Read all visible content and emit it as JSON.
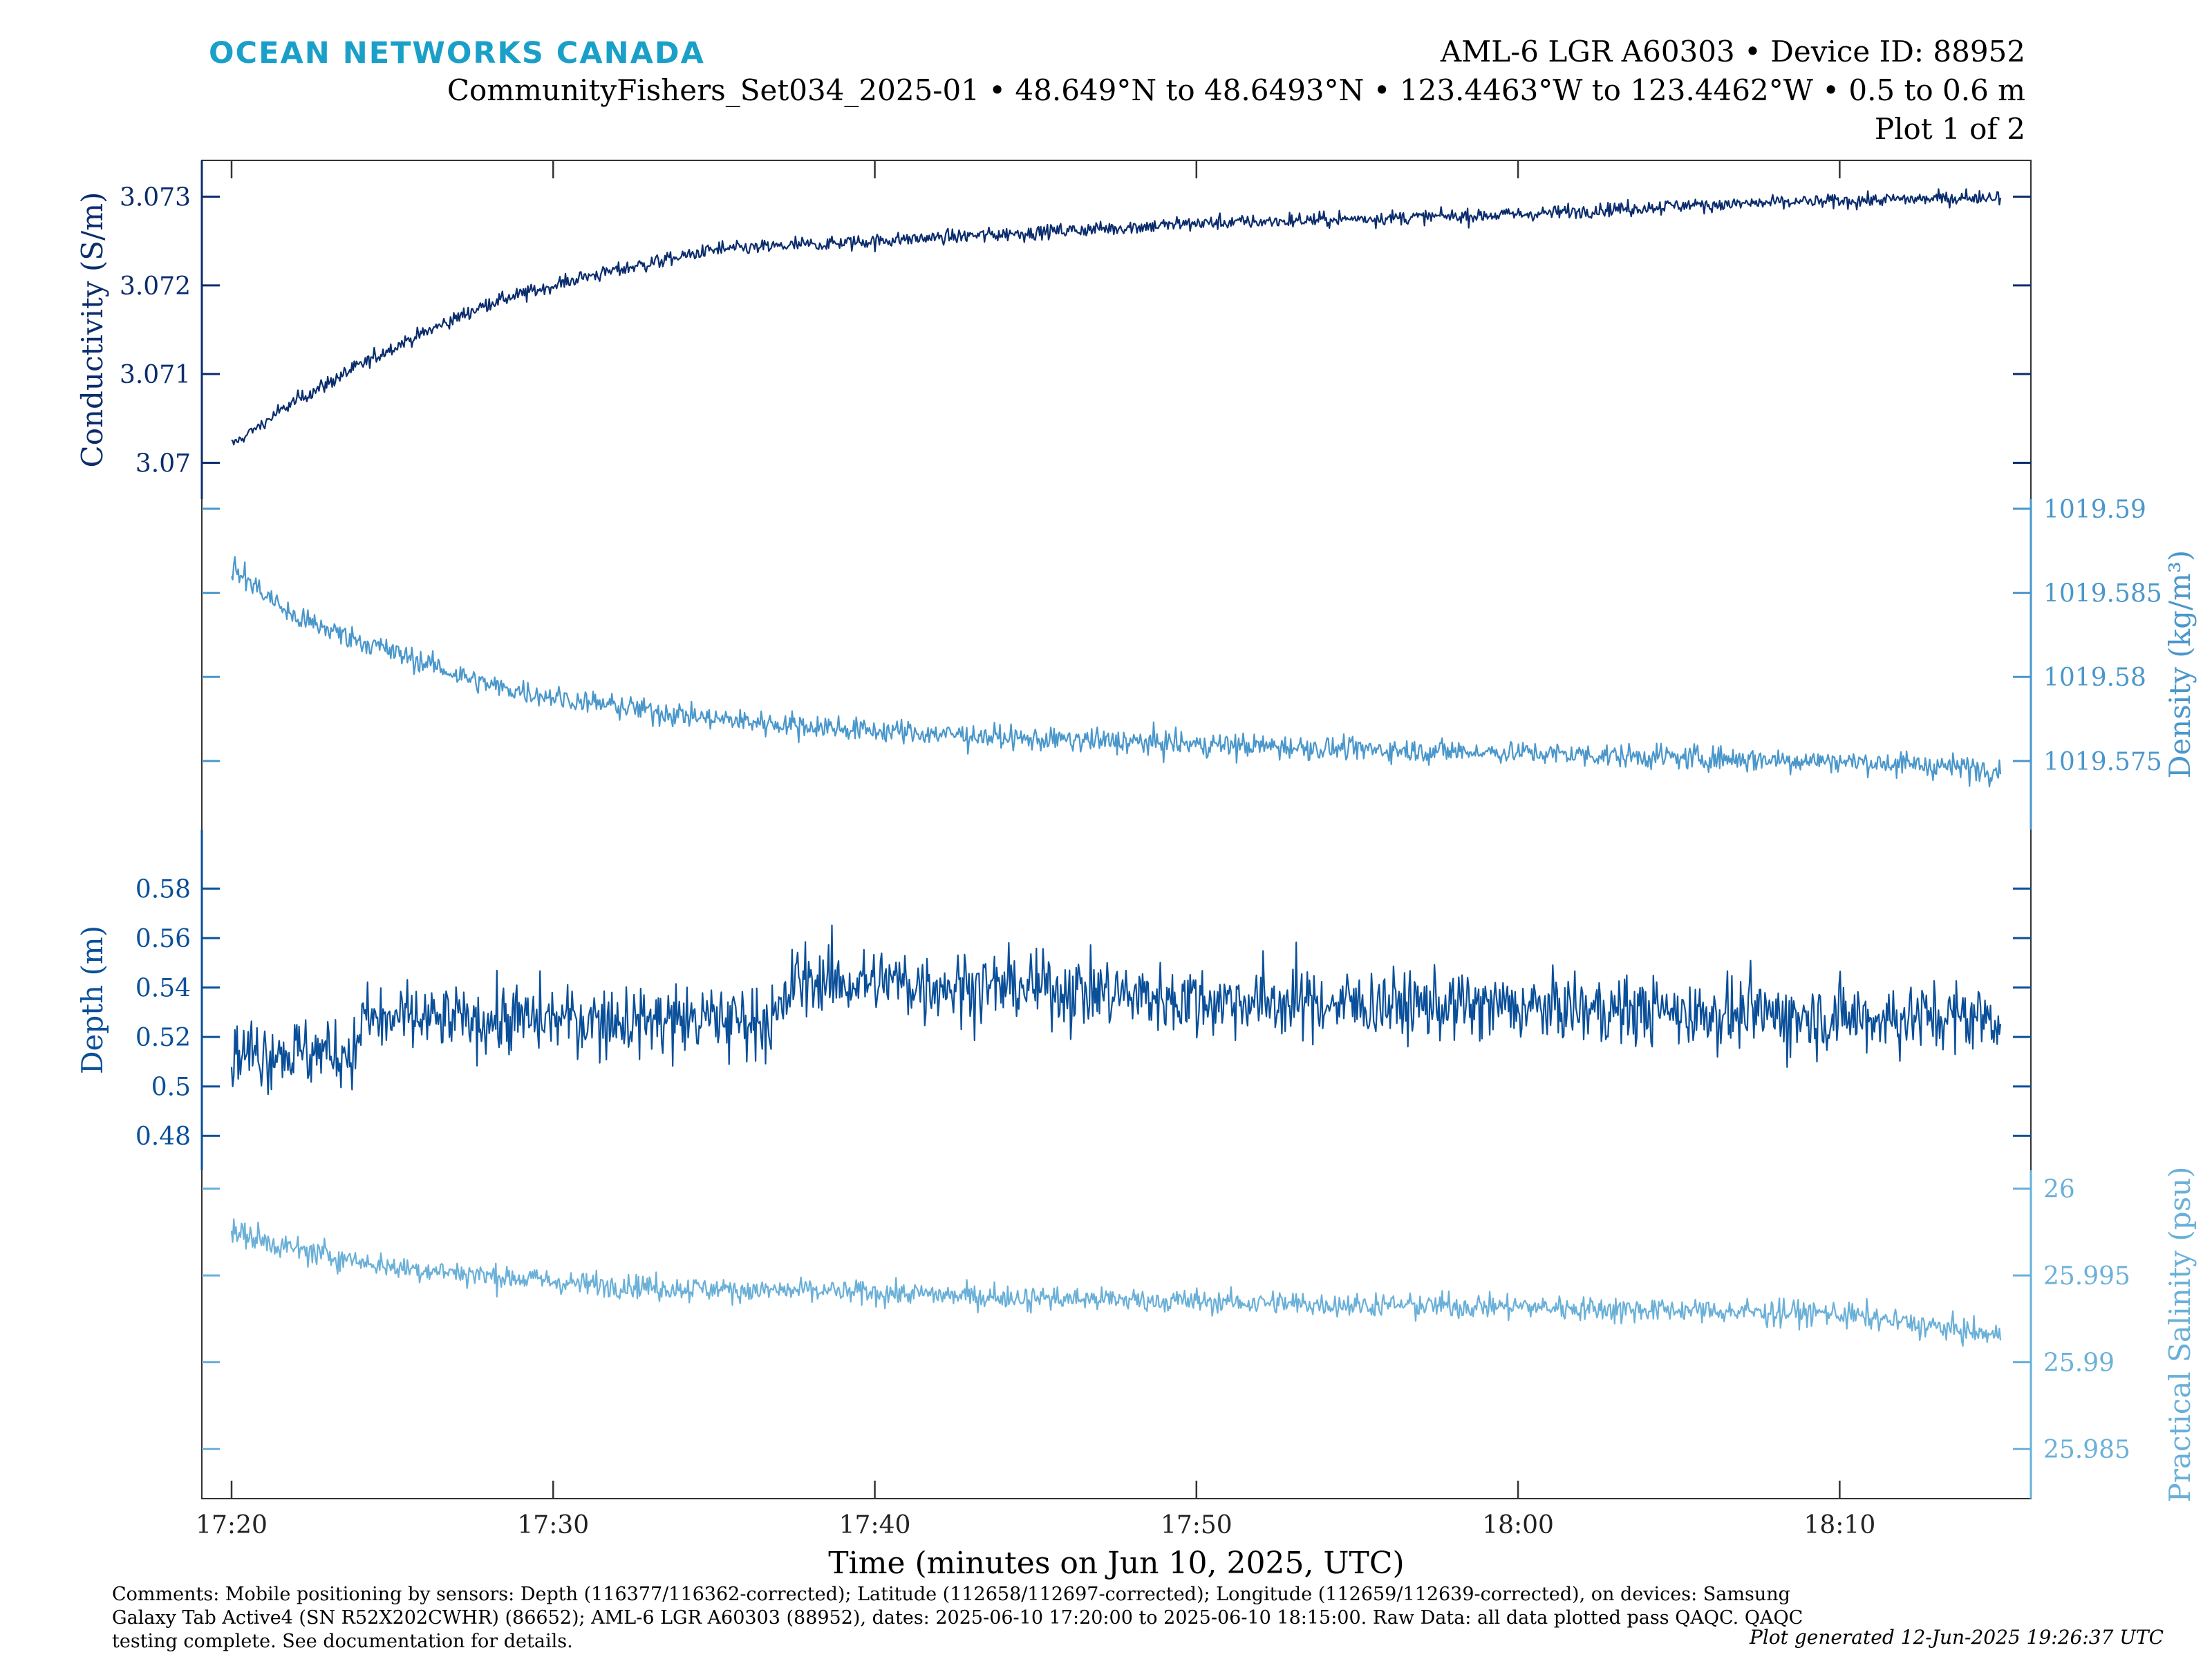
{
  "brand": "OCEAN NETWORKS CANADA",
  "header": {
    "line1": "AML-6 LGR A60303 • Device ID: 88952",
    "line2": "CommunityFishers_Set034_2025-01 • 48.649°N to 48.6493°N • 123.4463°W to 123.4462°W • 0.5 to 0.6 m",
    "line3": "Plot 1 of 2"
  },
  "footer": {
    "comments": "Comments: Mobile positioning by sensors: Depth (116377/116362-corrected); Latitude (112658/112697-corrected); Longitude (112659/112639-corrected), on devices: Samsung Galaxy Tab Active4 (SN R52X202CWHR) (86652); AML-6 LGR A60303 (88952), dates: 2025-06-10 17:20:00 to 2025-06-10 18:15:00. Raw Data: all data plotted pass QAQC. QAQC testing complete. See documentation for details.",
    "generated": "Plot generated 12-Jun-2025 19:26:37 UTC"
  },
  "chart_data": {
    "type": "line",
    "xlabel": "Time (minutes on Jun 10, 2025, UTC)",
    "x_ticks": [
      "17:20",
      "17:30",
      "17:40",
      "17:50",
      "18:00",
      "18:10"
    ],
    "x_range": [
      "17:20",
      "18:15"
    ],
    "panels": [
      {
        "name": "Conductivity",
        "ylabel": "Conductivity (S/m)",
        "axis_side": "left",
        "color": "#0b2d6e",
        "ylim": [
          3.0697,
          3.0733
        ],
        "yticks": [
          "3.07",
          "3.071",
          "3.072",
          "3.073"
        ],
        "time": [
          "17:20",
          "17:22",
          "17:25",
          "17:28",
          "17:31",
          "17:35",
          "17:40",
          "17:45",
          "17:50",
          "17:55",
          "18:00",
          "18:05",
          "18:10",
          "18:15"
        ],
        "values": [
          3.0702,
          3.0707,
          3.0713,
          3.0718,
          3.0721,
          3.0724,
          3.0725,
          3.0726,
          3.0727,
          3.07275,
          3.0728,
          3.0729,
          3.07295,
          3.073
        ],
        "spread": 8e-05
      },
      {
        "name": "Density",
        "ylabel": "Density (kg/m³)",
        "axis_side": "right",
        "color": "#4a97cb",
        "ylim": [
          1019.5715,
          1019.59
        ],
        "yticks": [
          "1019.575",
          "1019.58",
          "1019.585",
          "1019.59"
        ],
        "time": [
          "17:20",
          "17:22",
          "17:25",
          "17:28",
          "17:31",
          "17:35",
          "17:40",
          "17:45",
          "17:50",
          "17:55",
          "18:00",
          "18:05",
          "18:10",
          "18:15"
        ],
        "values": [
          1019.5865,
          1019.5835,
          1019.5815,
          1019.5795,
          1019.5785,
          1019.5775,
          1019.5768,
          1019.5763,
          1019.576,
          1019.5757,
          1019.5755,
          1019.5752,
          1019.575,
          1019.5745
        ],
        "spread": 0.0007
      },
      {
        "name": "Depth",
        "ylabel": "Depth (m)",
        "axis_side": "left",
        "color": "#0a4f99",
        "ylim": [
          0.47,
          0.6
        ],
        "yticks": [
          "0.48",
          "0.5",
          "0.52",
          "0.54",
          "0.56",
          "0.58"
        ],
        "time": [
          "17:20",
          "17:23.9",
          "17:24",
          "17:37",
          "17:37.5",
          "17:45",
          "17:50",
          "18:00",
          "18:10",
          "18:15"
        ],
        "values": [
          0.514,
          0.514,
          0.527,
          0.527,
          0.543,
          0.54,
          0.535,
          0.532,
          0.528,
          0.528
        ],
        "spread": 0.014
      },
      {
        "name": "Practical Salinity",
        "ylabel": "Practical Salinity (psu)",
        "axis_side": "right",
        "color": "#6ab0d8",
        "ylim": [
          25.9827,
          26.0005
        ],
        "yticks": [
          "25.985",
          "25.99",
          "25.995",
          "26"
        ],
        "time": [
          "17:20",
          "17:22",
          "17:25",
          "17:28",
          "17:31",
          "17:35",
          "17:40",
          "17:45",
          "17:50",
          "17:55",
          "18:00",
          "18:05",
          "18:10",
          "18:15"
        ],
        "values": [
          25.9975,
          25.9965,
          25.9955,
          25.995,
          25.9945,
          25.9942,
          25.994,
          25.9937,
          25.9935,
          25.9933,
          25.9932,
          25.993,
          25.9928,
          25.9915
        ],
        "spread": 0.0007
      }
    ]
  }
}
